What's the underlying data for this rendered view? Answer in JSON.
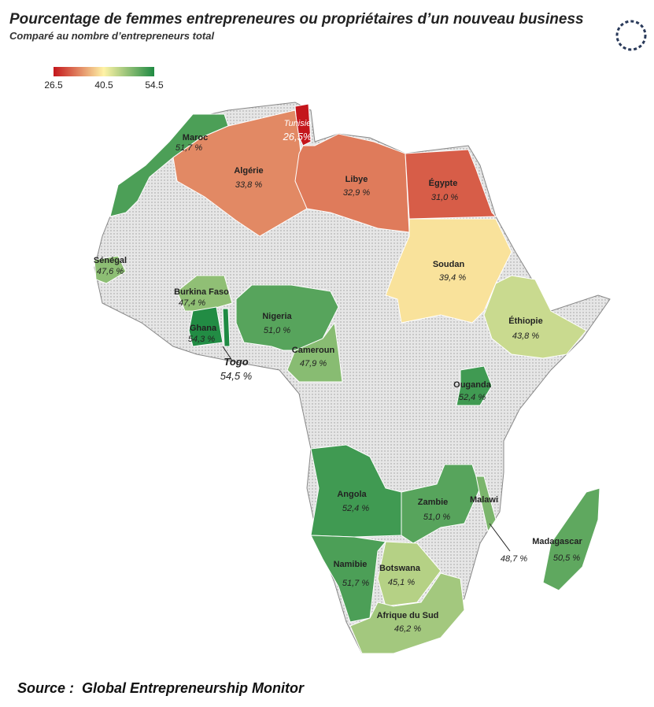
{
  "header": {
    "title": "Pourcentage de femmes entrepreneures ou propriétaires d’un nouveau business",
    "subtitle": "Comparé au nombre d’entrepreneurs total"
  },
  "legend": {
    "ticks": [
      26.5,
      40.5,
      54.5
    ],
    "colors": [
      "#c4161c",
      "#fef3a6",
      "#1f8a43"
    ]
  },
  "countries": [
    {
      "name": "Tunisie",
      "value": 26.5,
      "value_label": "26,5%"
    },
    {
      "name": "Maroc",
      "value": 51.7,
      "value_label": "51,7 %"
    },
    {
      "name": "Algérie",
      "value": 33.8,
      "value_label": "33,8 %"
    },
    {
      "name": "Libye",
      "value": 32.9,
      "value_label": "32,9 %"
    },
    {
      "name": "Égypte",
      "value": 31.0,
      "value_label": "31,0 %"
    },
    {
      "name": "Soudan",
      "value": 39.4,
      "value_label": "39,4 %"
    },
    {
      "name": "Sénégal",
      "value": 47.6,
      "value_label": "47,6 %"
    },
    {
      "name": "Burkina Faso",
      "value": 47.4,
      "value_label": "47,4 %"
    },
    {
      "name": "Ghana",
      "value": 54.3,
      "value_label": "54,3 %"
    },
    {
      "name": "Togo",
      "value": 54.5,
      "value_label": "54,5 %"
    },
    {
      "name": "Nigeria",
      "value": 51.0,
      "value_label": "51,0 %"
    },
    {
      "name": "Cameroun",
      "value": 47.9,
      "value_label": "47,9 %"
    },
    {
      "name": "Éthiopie",
      "value": 43.8,
      "value_label": "43,8 %"
    },
    {
      "name": "Ouganda",
      "value": 52.4,
      "value_label": "52,4 %"
    },
    {
      "name": "Angola",
      "value": 52.4,
      "value_label": "52,4 %"
    },
    {
      "name": "Zambie",
      "value": 51.0,
      "value_label": "51,0 %"
    },
    {
      "name": "Malawi",
      "value": 48.7,
      "value_label": "48,7 %"
    },
    {
      "name": "Namibie",
      "value": 51.7,
      "value_label": "51,7 %"
    },
    {
      "name": "Botswana",
      "value": 45.1,
      "value_label": "45,1 %"
    },
    {
      "name": "Afrique du Sud",
      "value": 46.2,
      "value_label": "46,2 %"
    },
    {
      "name": "Madagascar",
      "value": 50.5,
      "value_label": "50,5 %"
    }
  ],
  "source": {
    "label": "Source :",
    "text": "Global Entrepreneurship Monitor"
  }
}
